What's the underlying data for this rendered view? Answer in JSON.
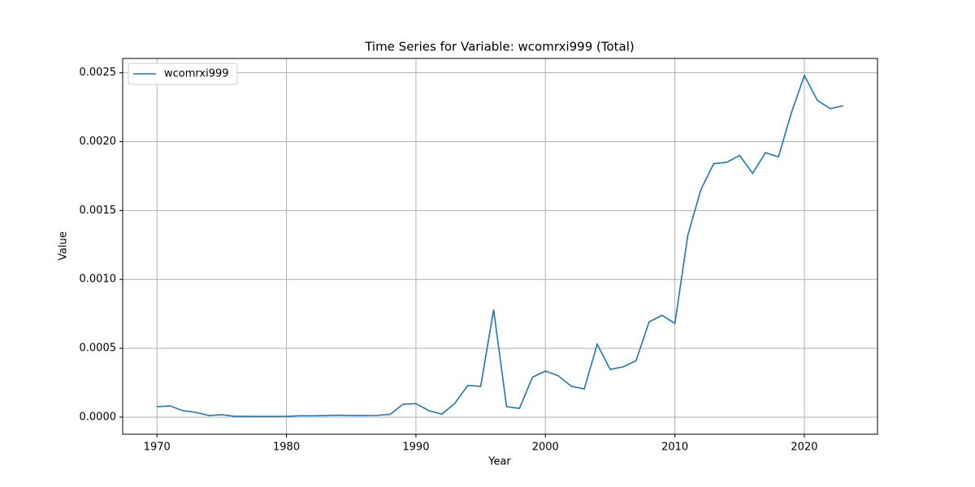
{
  "chart_data": {
    "type": "line",
    "title": "Time Series for Variable: wcomrxi999 (Total)",
    "xlabel": "Year",
    "ylabel": "Value",
    "x": [
      1970,
      1971,
      1972,
      1973,
      1974,
      1975,
      1976,
      1977,
      1978,
      1979,
      1980,
      1981,
      1982,
      1983,
      1984,
      1985,
      1986,
      1987,
      1988,
      1989,
      1990,
      1991,
      1992,
      1993,
      1994,
      1995,
      1996,
      1997,
      1998,
      1999,
      2000,
      2001,
      2002,
      2003,
      2004,
      2005,
      2006,
      2007,
      2008,
      2009,
      2010,
      2011,
      2012,
      2013,
      2014,
      2015,
      2016,
      2017,
      2018,
      2019,
      2020,
      2021,
      2022,
      2023
    ],
    "series": [
      {
        "name": "wcomrxi999",
        "color": "#1f77b4",
        "values": [
          7.6e-05,
          8.2e-05,
          4.7e-05,
          3.5e-05,
          1.2e-05,
          1.8e-05,
          6e-06,
          6e-06,
          5e-06,
          5e-06,
          6e-06,
          1e-05,
          1e-05,
          1.2e-05,
          1.4e-05,
          1.2e-05,
          1.2e-05,
          1.3e-05,
          2e-05,
          9.4e-05,
          9.8e-05,
          4.7e-05,
          2.2e-05,
          0.0001,
          0.00023,
          0.000224,
          0.00078,
          7.6e-05,
          6.4e-05,
          0.00029,
          0.000335,
          0.0003,
          0.000224,
          0.000205,
          0.00053,
          0.000347,
          0.000365,
          0.00041,
          0.00069,
          0.00074,
          0.00068,
          0.00132,
          0.00165,
          0.00184,
          0.00185,
          0.0019,
          0.00177,
          0.00192,
          0.00189,
          0.00221,
          0.00248,
          0.0023,
          0.00224,
          0.00226
        ]
      }
    ],
    "xlim": [
      1967.35,
      2025.65
    ],
    "ylim": [
      -0.000124,
      0.002604
    ],
    "xticks": [
      1970,
      1980,
      1990,
      2000,
      2010,
      2020
    ],
    "yticks": [
      {
        "value": 0,
        "label": "0.0000"
      },
      {
        "value": 0.0005,
        "label": "0.0005"
      },
      {
        "value": 0.001,
        "label": "0.0010"
      },
      {
        "value": 0.0015,
        "label": "0.0015"
      },
      {
        "value": 0.002,
        "label": "0.0020"
      },
      {
        "value": 0.0025,
        "label": "0.0025"
      }
    ],
    "grid": true,
    "legend": "upper left"
  }
}
